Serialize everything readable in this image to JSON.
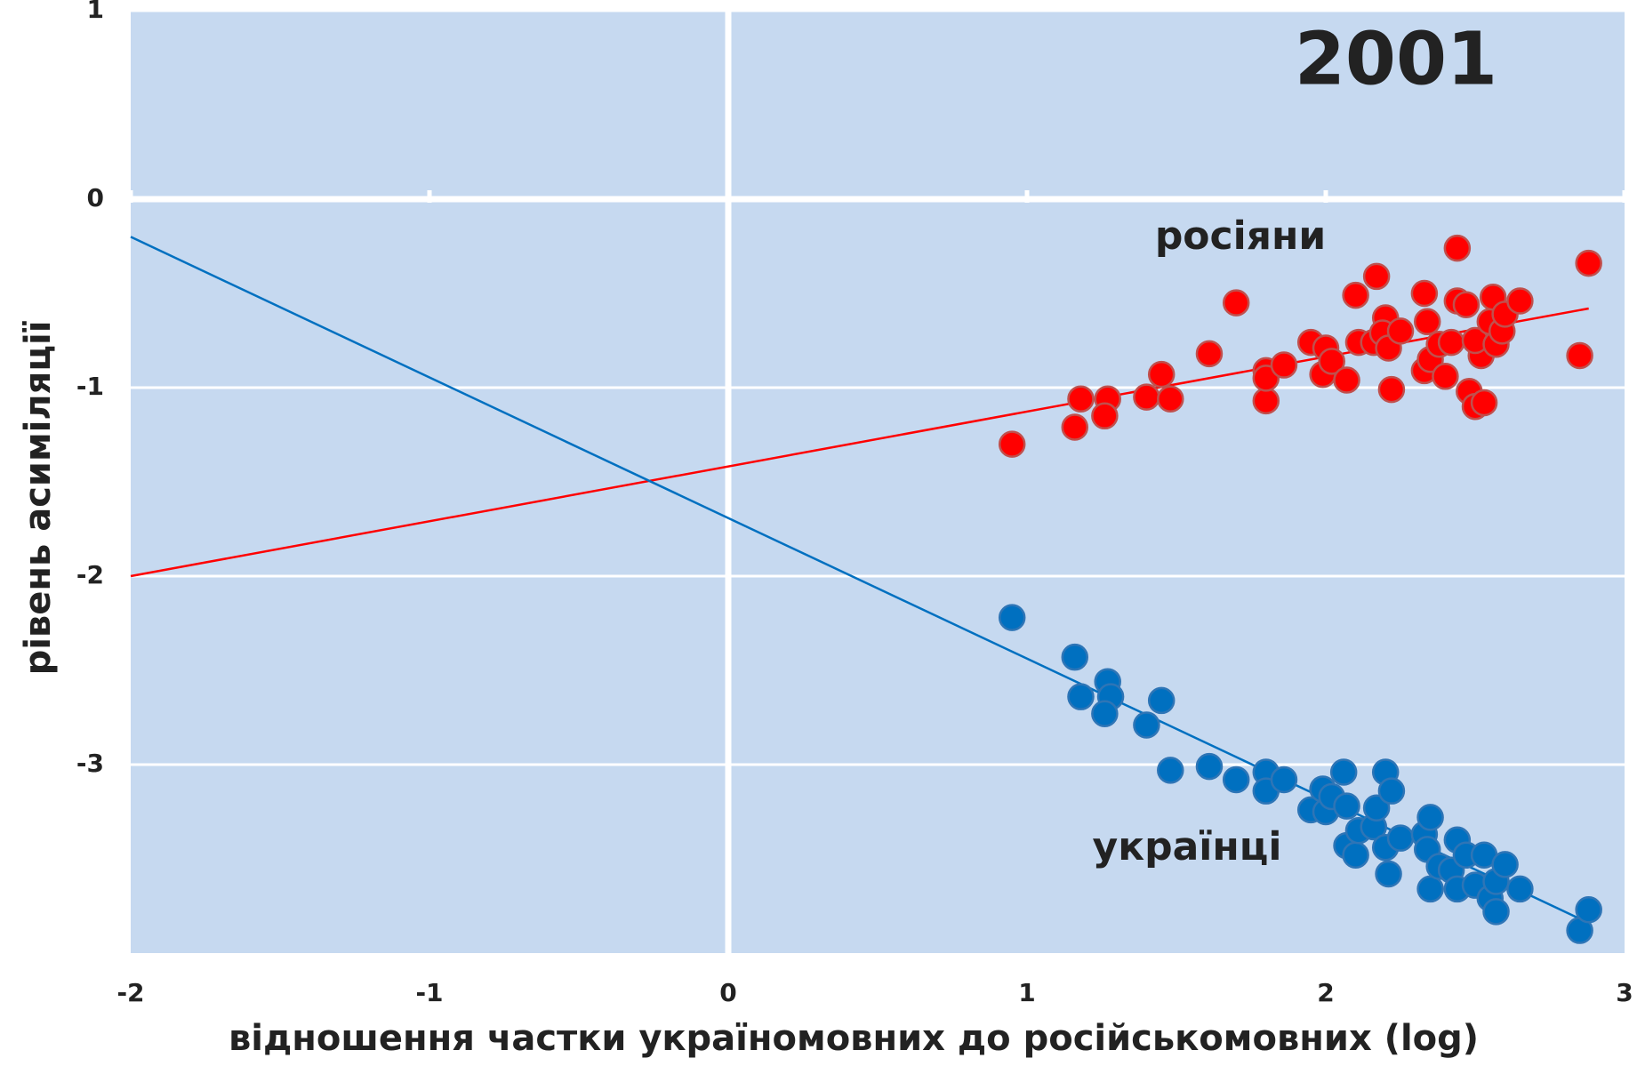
{
  "chart_data": {
    "type": "scatter",
    "title": "2001",
    "x_label": "відношення частки україномовних  до російськомовних (log)",
    "y_label": "рівень асиміляції",
    "xlim": [
      -2,
      3
    ],
    "ylim": [
      -4,
      1
    ],
    "xticks": [
      -2,
      -1,
      0,
      1,
      2,
      3
    ],
    "yticks": [
      -3,
      -2,
      -1,
      0,
      1
    ],
    "background": "#c6d9f0",
    "grid": true,
    "series": [
      {
        "name": "росіяни",
        "color": "#ff0000",
        "edge": "#c0504d",
        "x": [
          0.95,
          1.18,
          1.16,
          1.27,
          1.26,
          1.4,
          1.45,
          1.48,
          1.61,
          1.7,
          1.8,
          1.8,
          1.8,
          1.86,
          1.95,
          1.99,
          2.0,
          2.02,
          2.07,
          2.1,
          2.11,
          2.17,
          2.16,
          2.2,
          2.19,
          2.21,
          2.22,
          2.25,
          2.33,
          2.33,
          2.34,
          2.35,
          2.38,
          2.4,
          2.42,
          2.44,
          2.44,
          2.47,
          2.48,
          2.5,
          2.53,
          2.52,
          2.5,
          2.55,
          2.56,
          2.57,
          2.59,
          2.6,
          2.65,
          2.85,
          2.88
        ],
        "values": [
          -1.3,
          -1.06,
          -1.21,
          -1.06,
          -1.15,
          -1.05,
          -0.93,
          -1.06,
          -0.82,
          -0.55,
          -0.91,
          -1.07,
          -0.95,
          -0.88,
          -0.76,
          -0.93,
          -0.79,
          -0.86,
          -0.96,
          -0.51,
          -0.76,
          -0.41,
          -0.76,
          -0.63,
          -0.71,
          -0.79,
          -1.01,
          -0.7,
          -0.5,
          -0.91,
          -0.65,
          -0.85,
          -0.77,
          -0.94,
          -0.76,
          -0.26,
          -0.54,
          -0.56,
          -1.02,
          -1.1,
          -1.08,
          -0.83,
          -0.75,
          -0.65,
          -0.52,
          -0.77,
          -0.7,
          -0.61,
          -0.54,
          -0.83,
          -0.34
        ],
        "trend": {
          "x": [
            -2,
            2.88
          ],
          "y": [
            -2.0,
            -0.58
          ]
        }
      },
      {
        "name": "українці",
        "color": "#0070c0",
        "edge": "#2e75b6",
        "x": [
          0.95,
          1.16,
          1.18,
          1.27,
          1.28,
          1.26,
          1.4,
          1.45,
          1.48,
          1.61,
          1.7,
          1.8,
          1.8,
          1.86,
          1.95,
          1.99,
          2.0,
          2.02,
          2.06,
          2.07,
          2.07,
          2.1,
          2.11,
          2.16,
          2.17,
          2.2,
          2.2,
          2.21,
          2.22,
          2.25,
          2.33,
          2.35,
          2.34,
          2.35,
          2.38,
          2.42,
          2.44,
          2.44,
          2.47,
          2.5,
          2.53,
          2.55,
          2.57,
          2.57,
          2.6,
          2.65,
          2.85,
          2.88
        ],
        "values": [
          -2.22,
          -2.43,
          -2.64,
          -2.56,
          -2.64,
          -2.73,
          -2.79,
          -2.66,
          -3.03,
          -3.01,
          -3.08,
          -3.04,
          -3.14,
          -3.08,
          -3.24,
          -3.13,
          -3.25,
          -3.17,
          -3.04,
          -3.22,
          -3.43,
          -3.48,
          -3.35,
          -3.33,
          -3.23,
          -3.04,
          -3.44,
          -3.58,
          -3.14,
          -3.39,
          -3.37,
          -3.28,
          -3.45,
          -3.66,
          -3.54,
          -3.56,
          -3.4,
          -3.66,
          -3.48,
          -3.64,
          -3.48,
          -3.71,
          -3.78,
          -3.62,
          -3.53,
          -3.66,
          -3.88,
          -3.77
        ],
        "trend": {
          "x": [
            -2,
            2.88
          ],
          "y": [
            -0.2,
            -3.84
          ]
        }
      }
    ]
  }
}
